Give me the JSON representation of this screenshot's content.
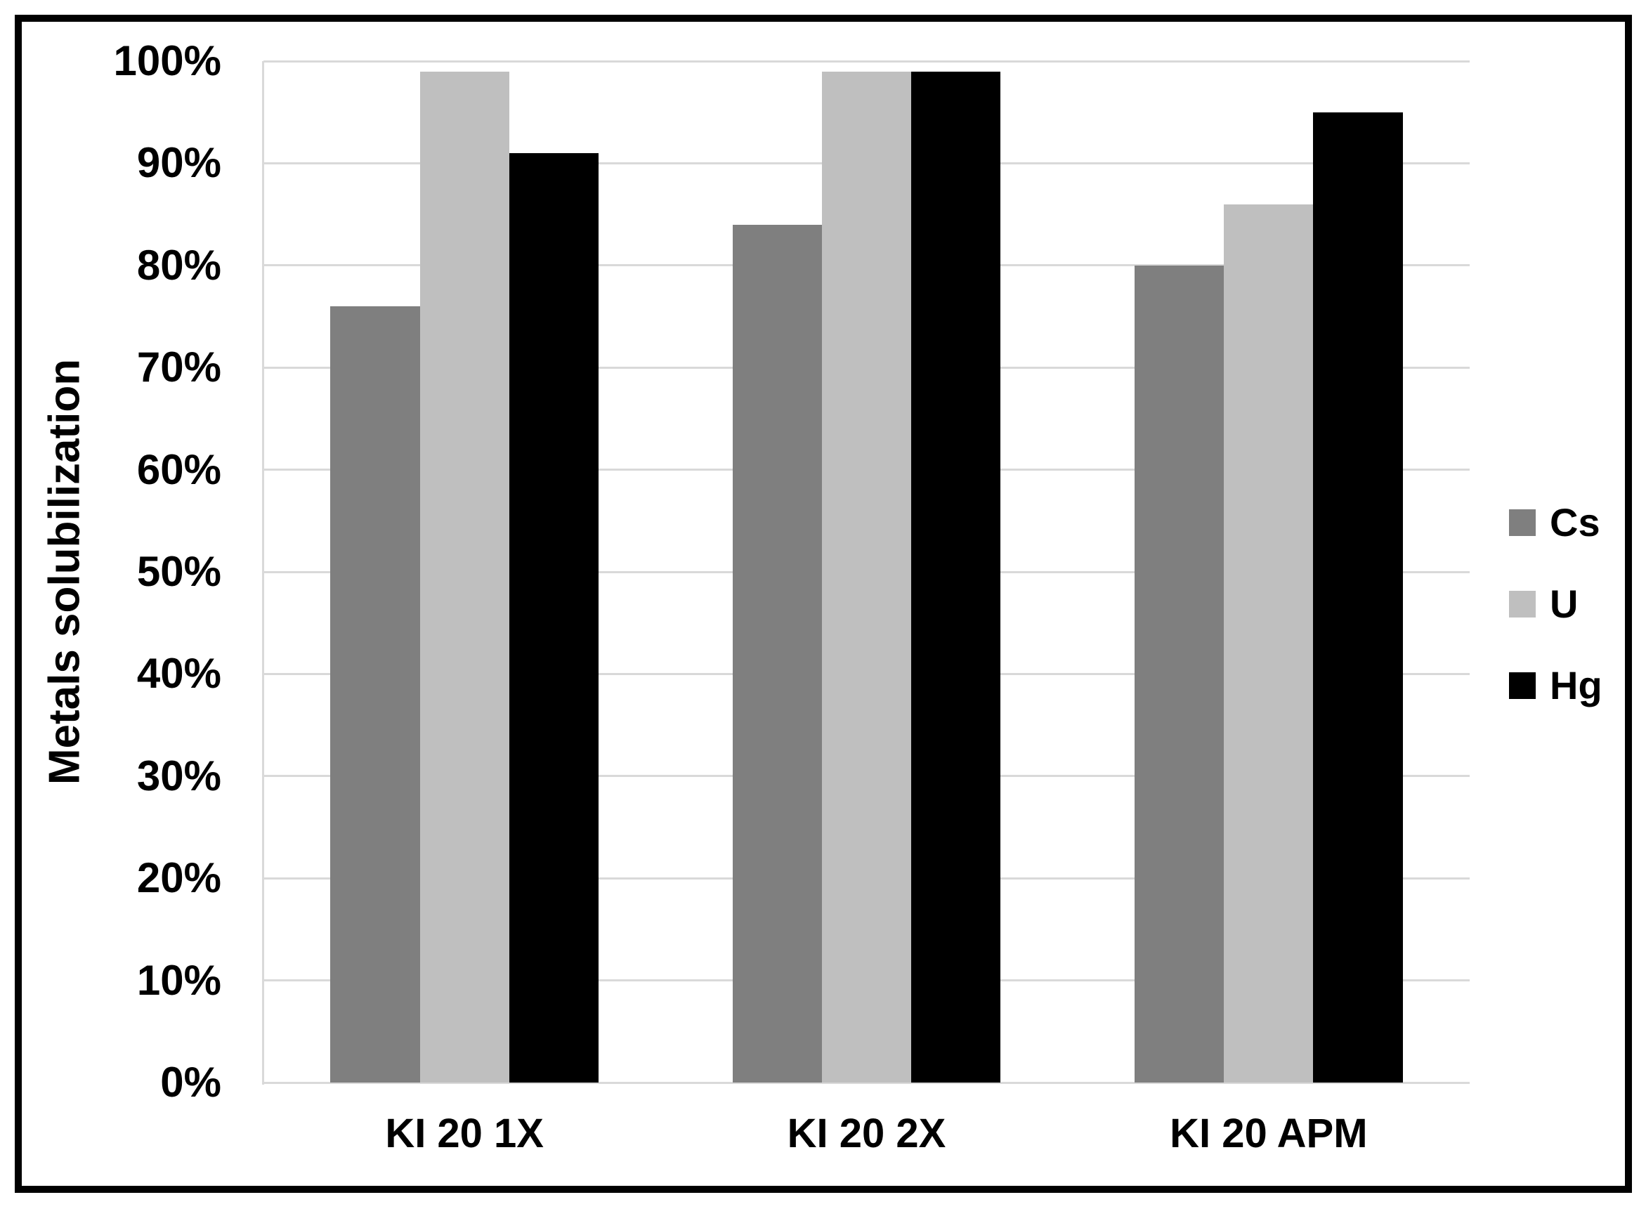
{
  "chart_data": {
    "type": "bar",
    "title": "",
    "xlabel": "",
    "ylabel": "Metals solubilization",
    "categories": [
      "KI 20 1X",
      "KI 20 2X",
      "KI 20 APM"
    ],
    "series": [
      {
        "name": "Cs",
        "color": "#7f7f7f",
        "values": [
          76,
          84,
          80
        ]
      },
      {
        "name": "U",
        "color": "#bfbfbf",
        "values": [
          99,
          99,
          86
        ]
      },
      {
        "name": "Hg",
        "color": "#000000",
        "values": [
          91,
          99,
          95
        ]
      }
    ],
    "ylim": [
      0,
      100
    ],
    "yticks": [
      "0%",
      "10%",
      "20%",
      "30%",
      "40%",
      "50%",
      "60%",
      "70%",
      "80%",
      "90%",
      "100%"
    ],
    "grid": true,
    "legend_position": "right",
    "colors": {
      "gridline": "#d9d9d9",
      "axis_line": "#d9d9d9",
      "frame": "#000000",
      "background": "#ffffff"
    }
  }
}
